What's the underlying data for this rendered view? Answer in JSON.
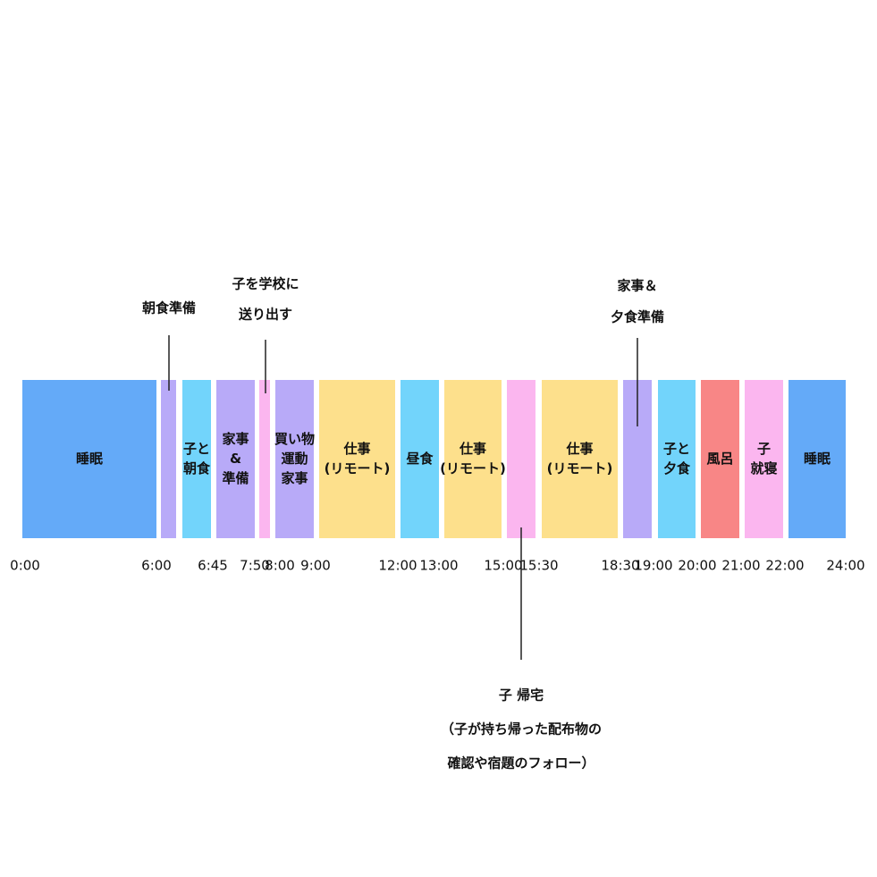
{
  "timeline": {
    "blocks": [
      {
        "lines": [
          "睡眠"
        ],
        "color": "#64aaf8"
      },
      {
        "color": "#b8aaf8"
      },
      {
        "lines": [
          "子と",
          "朝食"
        ],
        "color": "#72d4fb"
      },
      {
        "lines": [
          "家事",
          "&",
          "準備"
        ],
        "color": "#b8aaf8"
      },
      {
        "color": "#fbb6ef"
      },
      {
        "lines": [
          "買い物",
          "運動",
          "家事"
        ],
        "color": "#b8aaf8"
      },
      {
        "lines": [
          "仕事",
          "(リモート)"
        ],
        "color": "#fde08c"
      },
      {
        "lines": [
          "昼食"
        ],
        "color": "#72d4fb"
      },
      {
        "lines": [
          "仕事",
          "(リモート)"
        ],
        "color": "#fde08c"
      },
      {
        "color": "#fbb6ef"
      },
      {
        "lines": [
          "仕事",
          "(リモート)"
        ],
        "color": "#fde08c"
      },
      {
        "color": "#b8aaf8"
      },
      {
        "lines": [
          "子と",
          "夕食"
        ],
        "color": "#72d4fb"
      },
      {
        "lines": [
          "風呂"
        ],
        "color": "#f88686"
      },
      {
        "lines": [
          "子",
          "就寝"
        ],
        "color": "#fbb6ef"
      },
      {
        "lines": [
          "睡眠"
        ],
        "color": "#64aaf8"
      }
    ],
    "ticks": [
      "0:00",
      "6:00",
      "6:45",
      "7:50",
      "8:00",
      "9:00",
      "12:00",
      "13:00",
      "15:00",
      "15:30",
      "18:30",
      "19:00",
      "20:00",
      "21:00",
      "22:00",
      "24:00"
    ],
    "callouts": [
      {
        "lines": [
          "朝食準備"
        ]
      },
      {
        "lines": [
          "子を学校に",
          "送り出す"
        ]
      },
      {
        "lines": [
          "家事＆",
          "夕食準備"
        ]
      },
      {
        "lines": [
          "子 帰宅",
          "（子が持ち帰った配布物の",
          "確認や宿題のフォロー）"
        ]
      }
    ]
  }
}
